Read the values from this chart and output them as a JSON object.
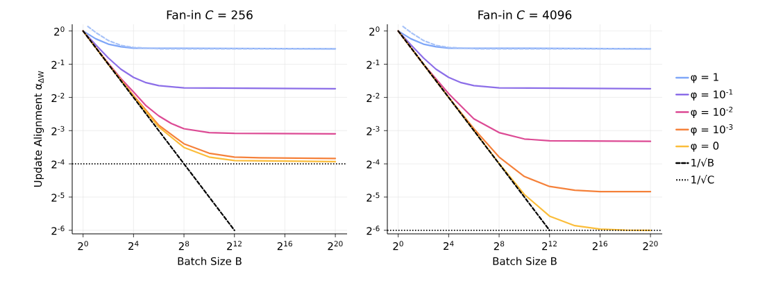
{
  "chart_data": [
    {
      "type": "line",
      "title": "Fan-in *C* = 256",
      "xlabel": "Batch Size B",
      "ylabel": "Update Alignment α$_{ΔW}$",
      "log": "xy",
      "grid": true,
      "legend": false,
      "marker": "none",
      "xlim": [
        0.55,
        2000000
      ],
      "ylim": [
        0.0145,
        1.15
      ],
      "xticks": [
        {
          "value": 1,
          "label": "2$^{0}$"
        },
        {
          "value": 16,
          "label": "2$^{4}$"
        },
        {
          "value": 256,
          "label": "2$^{8}$"
        },
        {
          "value": 4096,
          "label": "2$^{12}$"
        },
        {
          "value": 65536,
          "label": "2$^{16}$"
        },
        {
          "value": 1048576,
          "label": "2$^{20}$"
        }
      ],
      "yticks": [
        {
          "value": 0.015625,
          "label": "2$^{-6}$"
        },
        {
          "value": 0.03125,
          "label": "2$^{-5}$"
        },
        {
          "value": 0.0625,
          "label": "2$^{-4}$"
        },
        {
          "value": 0.125,
          "label": "2$^{-3}$"
        },
        {
          "value": 0.25,
          "label": "2$^{-2}$"
        },
        {
          "value": 0.5,
          "label": "2$^{-1}$"
        },
        {
          "value": 1,
          "label": "2$^{0}$"
        }
      ],
      "series": [
        {
          "color": "#7ea6f8",
          "line_style": "solid",
          "x": [
            1,
            2,
            4,
            8,
            16,
            1048576
          ],
          "values": [
            1,
            0.85,
            0.76,
            0.72,
            0.7,
            0.69
          ]
        },
        {
          "color": "#a8c3f8",
          "line_style": "dashed",
          "x": [
            1.3,
            2,
            4,
            8,
            16,
            64,
            1048576
          ],
          "values": [
            1.1,
            0.97,
            0.82,
            0.74,
            0.71,
            0.69,
            0.69
          ]
        },
        {
          "color": "#8c6ee8",
          "line_style": "solid",
          "x": [
            1,
            2,
            4,
            8,
            16,
            32,
            64,
            256,
            1048576
          ],
          "values": [
            1,
            0.75,
            0.57,
            0.45,
            0.38,
            0.34,
            0.32,
            0.305,
            0.3
          ]
        },
        {
          "color": "#dc4a94",
          "line_style": "solid",
          "x": [
            1,
            2,
            4,
            8,
            16,
            32,
            64,
            128,
            256,
            1024,
            4096,
            1048576
          ],
          "values": [
            1,
            0.71,
            0.51,
            0.37,
            0.28,
            0.21,
            0.17,
            0.145,
            0.13,
            0.12,
            0.118,
            0.117
          ]
        },
        {
          "color": "#f5813a",
          "line_style": "solid",
          "x": [
            1,
            4,
            16,
            64,
            256,
            1024,
            4096,
            16384,
            1048576
          ],
          "values": [
            1,
            0.5,
            0.26,
            0.14,
            0.095,
            0.078,
            0.072,
            0.071,
            0.07
          ]
        },
        {
          "color": "#fbbd3a",
          "line_style": "solid",
          "x": [
            1,
            4,
            16,
            64,
            256,
            1024,
            4096,
            1048576
          ],
          "values": [
            1,
            0.5,
            0.255,
            0.135,
            0.088,
            0.072,
            0.067,
            0.0655
          ]
        },
        {
          "color": "#000000",
          "line_style": "dashed",
          "x": [
            1,
            4096
          ],
          "values": [
            1,
            0.015625
          ]
        }
      ],
      "ref_lines": [
        {
          "axis": "y",
          "value": 0.0625,
          "color": "#000000",
          "line_style": "dotted"
        }
      ]
    },
    {
      "type": "line",
      "title": "Fan-in *C* = 4096",
      "xlabel": "Batch Size B",
      "log": "xy",
      "grid": true,
      "legend": "right",
      "marker": "none",
      "xlim": [
        0.55,
        2000000
      ],
      "ylim": [
        0.0145,
        1.15
      ],
      "xticks": [
        {
          "value": 1,
          "label": "2$^{0}$"
        },
        {
          "value": 16,
          "label": "2$^{4}$"
        },
        {
          "value": 256,
          "label": "2$^{8}$"
        },
        {
          "value": 4096,
          "label": "2$^{12}$"
        },
        {
          "value": 65536,
          "label": "2$^{16}$"
        },
        {
          "value": 1048576,
          "label": "2$^{20}$"
        }
      ],
      "yticks": [
        {
          "value": 0.015625,
          "label": "2$^{-6}$"
        },
        {
          "value": 0.03125,
          "label": "2$^{-5}$"
        },
        {
          "value": 0.0625,
          "label": "2$^{-4}$"
        },
        {
          "value": 0.125,
          "label": "2$^{-3}$"
        },
        {
          "value": 0.25,
          "label": "2$^{-2}$"
        },
        {
          "value": 0.5,
          "label": "2$^{-1}$"
        },
        {
          "value": 1,
          "label": "2$^{0}$"
        }
      ],
      "series": [
        {
          "name": "φ = 1",
          "color": "#7ea6f8",
          "line_style": "solid",
          "x": [
            1,
            2,
            4,
            8,
            16,
            1048576
          ],
          "values": [
            1,
            0.85,
            0.76,
            0.72,
            0.7,
            0.69
          ]
        },
        {
          "color": "#a8c3f8",
          "line_style": "dashed",
          "x": [
            1.3,
            2,
            4,
            8,
            16,
            64,
            1048576
          ],
          "values": [
            1.1,
            0.97,
            0.82,
            0.74,
            0.71,
            0.69,
            0.69
          ]
        },
        {
          "name": "φ = 10$^{-1}$",
          "color": "#8c6ee8",
          "line_style": "solid",
          "x": [
            1,
            2,
            4,
            8,
            16,
            32,
            64,
            256,
            1048576
          ],
          "values": [
            1,
            0.75,
            0.57,
            0.45,
            0.38,
            0.34,
            0.32,
            0.305,
            0.3
          ]
        },
        {
          "name": "φ = 10$^{-2}$",
          "color": "#dc4a94",
          "line_style": "solid",
          "x": [
            1,
            4,
            16,
            64,
            256,
            1024,
            4096,
            1048576
          ],
          "values": [
            1,
            0.5,
            0.27,
            0.16,
            0.12,
            0.105,
            0.101,
            0.1
          ]
        },
        {
          "name": "φ = 10$^{-3}$",
          "color": "#f5813a",
          "line_style": "solid",
          "x": [
            1,
            4,
            16,
            64,
            256,
            1024,
            4096,
            16384,
            65536,
            1048576
          ],
          "values": [
            1,
            0.5,
            0.25,
            0.13,
            0.072,
            0.048,
            0.039,
            0.036,
            0.035,
            0.035
          ]
        },
        {
          "name": "φ = 0",
          "color": "#fbbd3a",
          "line_style": "solid",
          "x": [
            1,
            16,
            256,
            1024,
            4096,
            16384,
            65536,
            262144,
            1048576
          ],
          "values": [
            1,
            0.25,
            0.063,
            0.033,
            0.021,
            0.0172,
            0.016,
            0.0157,
            0.0156
          ]
        },
        {
          "name": "1/√B",
          "color": "#000000",
          "line_style": "dashed",
          "x": [
            1,
            4096
          ],
          "values": [
            1,
            0.015625
          ]
        }
      ],
      "ref_lines": [
        {
          "axis": "y",
          "value": 0.015625,
          "label": "1/√C",
          "color": "#000000",
          "line_style": "dotted"
        }
      ]
    }
  ]
}
